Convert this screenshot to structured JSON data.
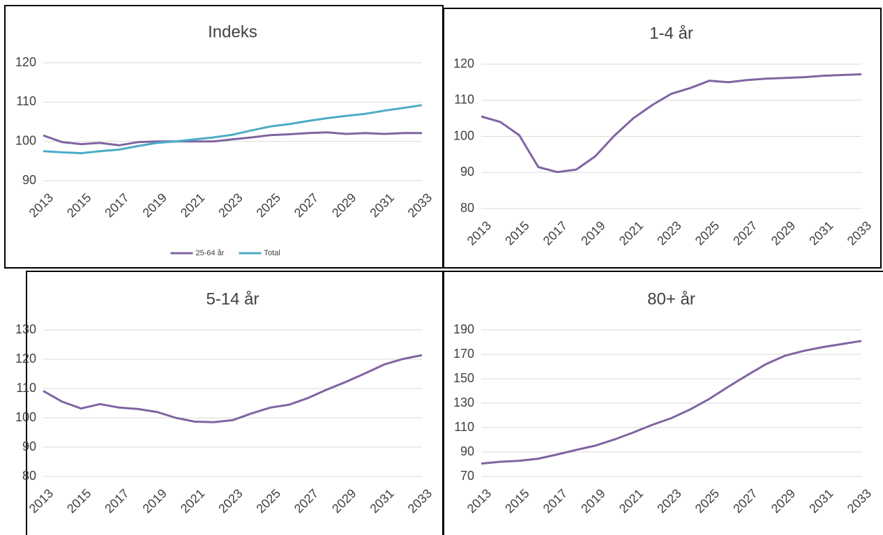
{
  "chart_data": [
    {
      "type": "line",
      "title": "Indeks",
      "x": [
        2013,
        2014,
        2015,
        2016,
        2017,
        2018,
        2019,
        2020,
        2021,
        2022,
        2023,
        2024,
        2025,
        2026,
        2027,
        2028,
        2029,
        2030,
        2031,
        2032,
        2033
      ],
      "xlim": [
        2013,
        2033
      ],
      "xticks": [
        2013,
        2015,
        2017,
        2019,
        2021,
        2023,
        2025,
        2027,
        2029,
        2031,
        2033
      ],
      "ylim": [
        90,
        120
      ],
      "yticks": [
        90,
        100,
        110,
        120
      ],
      "grid": true,
      "legend": "bottom",
      "series": [
        {
          "name": "25-64 år",
          "color": "#8064a2",
          "values": [
            101.5,
            99.8,
            99.3,
            99.6,
            99.0,
            99.8,
            100.0,
            100.0,
            100.0,
            100.0,
            100.5,
            101.0,
            101.6,
            101.8,
            102.1,
            102.3,
            101.9,
            102.1,
            101.9,
            102.1,
            102.1
          ]
        },
        {
          "name": "Total",
          "color": "#4bacc6",
          "values": [
            97.5,
            97.2,
            97.0,
            97.5,
            97.9,
            98.8,
            99.6,
            100.0,
            100.5,
            101.0,
            101.7,
            102.8,
            103.8,
            104.4,
            105.2,
            105.9,
            106.5,
            107.0,
            107.8,
            108.5,
            109.2
          ]
        }
      ]
    },
    {
      "type": "line",
      "title": "1-4 år",
      "x": [
        2013,
        2014,
        2015,
        2016,
        2017,
        2018,
        2019,
        2020,
        2021,
        2022,
        2023,
        2024,
        2025,
        2026,
        2027,
        2028,
        2029,
        2030,
        2031,
        2032,
        2033
      ],
      "xlim": [
        2013,
        2033
      ],
      "xticks": [
        2013,
        2015,
        2017,
        2019,
        2021,
        2023,
        2025,
        2027,
        2029,
        2031,
        2033
      ],
      "ylim": [
        80,
        120
      ],
      "yticks": [
        80,
        90,
        100,
        110,
        120
      ],
      "grid": true,
      "series": [
        {
          "color": "#8064a2",
          "values": [
            105.5,
            104.0,
            100.3,
            91.5,
            90.1,
            90.8,
            94.5,
            100.2,
            105.0,
            108.7,
            111.8,
            113.4,
            115.4,
            115.0,
            115.6,
            116.0,
            116.2,
            116.4,
            116.8,
            117.0,
            117.2
          ]
        }
      ]
    },
    {
      "type": "line",
      "title": "5-14 år",
      "x": [
        2013,
        2014,
        2015,
        2016,
        2017,
        2018,
        2019,
        2020,
        2021,
        2022,
        2023,
        2024,
        2025,
        2026,
        2027,
        2028,
        2029,
        2030,
        2031,
        2032,
        2033
      ],
      "xlim": [
        2013,
        2033
      ],
      "xticks": [
        2013,
        2015,
        2017,
        2019,
        2021,
        2023,
        2025,
        2027,
        2029,
        2031,
        2033
      ],
      "ylim": [
        80,
        130
      ],
      "yticks": [
        80,
        90,
        100,
        110,
        120,
        130
      ],
      "grid": true,
      "series": [
        {
          "color": "#8064a2",
          "values": [
            109.2,
            105.5,
            103.2,
            104.7,
            103.5,
            103.0,
            102.0,
            100.0,
            98.7,
            98.5,
            99.2,
            101.5,
            103.5,
            104.5,
            106.8,
            109.7,
            112.3,
            115.2,
            118.2,
            120.1,
            121.4
          ]
        }
      ]
    },
    {
      "type": "line",
      "title": "80+ år",
      "x": [
        2013,
        2014,
        2015,
        2016,
        2017,
        2018,
        2019,
        2020,
        2021,
        2022,
        2023,
        2024,
        2025,
        2026,
        2027,
        2028,
        2029,
        2030,
        2031,
        2032,
        2033
      ],
      "xlim": [
        2013,
        2033
      ],
      "xticks": [
        2013,
        2015,
        2017,
        2019,
        2021,
        2023,
        2025,
        2027,
        2029,
        2031,
        2033
      ],
      "ylim": [
        70,
        190
      ],
      "yticks": [
        70,
        90,
        110,
        130,
        150,
        170,
        190
      ],
      "grid": true,
      "series": [
        {
          "color": "#8064a2",
          "values": [
            80.5,
            82.0,
            82.8,
            84.5,
            88.0,
            91.7,
            95.2,
            100.2,
            106.0,
            112.3,
            117.7,
            125.0,
            133.5,
            143.5,
            153.0,
            162.2,
            169.0,
            173.0,
            176.0,
            178.5,
            181.0
          ]
        }
      ]
    }
  ]
}
